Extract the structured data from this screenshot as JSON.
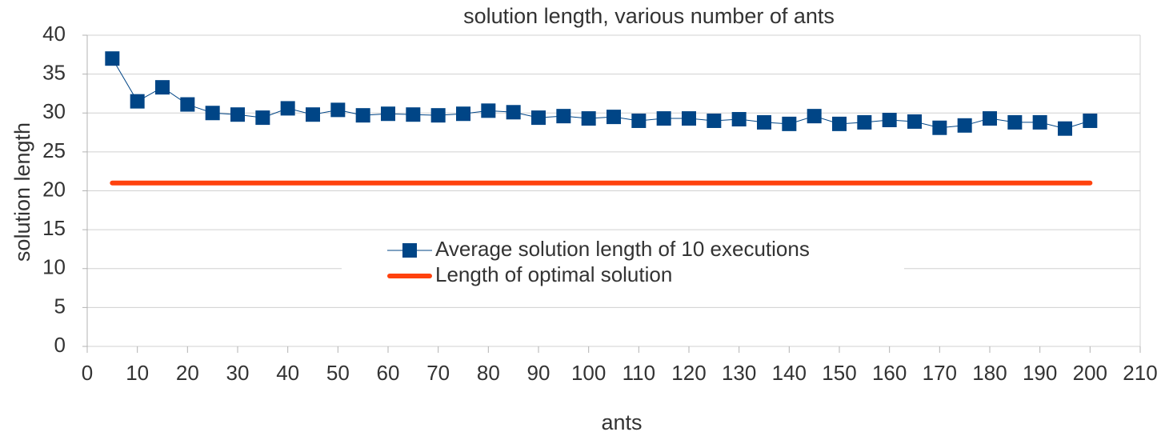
{
  "chart_data": {
    "type": "line",
    "title": "solution length, various number of ants",
    "xlabel": "ants",
    "ylabel": "solution length",
    "xlim": [
      0,
      210
    ],
    "xticks": [
      0,
      10,
      20,
      30,
      40,
      50,
      60,
      70,
      80,
      90,
      100,
      110,
      120,
      130,
      140,
      150,
      160,
      170,
      180,
      190,
      200,
      210
    ],
    "ylim": [
      0,
      40
    ],
    "yticks": [
      0,
      5,
      10,
      15,
      20,
      25,
      30,
      35,
      40
    ],
    "grid": true,
    "legend": "center",
    "series": [
      {
        "name": "Average solution length of 10 executions",
        "color": "#004586",
        "marker": "square",
        "x": [
          5,
          10,
          15,
          20,
          25,
          30,
          35,
          40,
          45,
          50,
          55,
          60,
          65,
          70,
          75,
          80,
          85,
          90,
          95,
          100,
          105,
          110,
          115,
          120,
          125,
          130,
          135,
          140,
          145,
          150,
          155,
          160,
          165,
          170,
          175,
          180,
          185,
          190,
          195,
          200
        ],
        "values": [
          37,
          31.5,
          33.3,
          31.1,
          30,
          29.8,
          29.4,
          30.6,
          29.8,
          30.4,
          29.7,
          29.9,
          29.8,
          29.7,
          29.9,
          30.3,
          30.1,
          29.4,
          29.6,
          29.3,
          29.5,
          29,
          29.3,
          29.3,
          29,
          29.2,
          28.8,
          28.6,
          29.6,
          28.6,
          28.8,
          29.1,
          28.9,
          28.1,
          28.4,
          29.3,
          28.8,
          28.8,
          28,
          29
        ]
      },
      {
        "name": "Length of optimal solution",
        "color": "#ff420e",
        "marker": "none",
        "x": [
          5,
          200
        ],
        "values": [
          21,
          21
        ]
      }
    ]
  }
}
